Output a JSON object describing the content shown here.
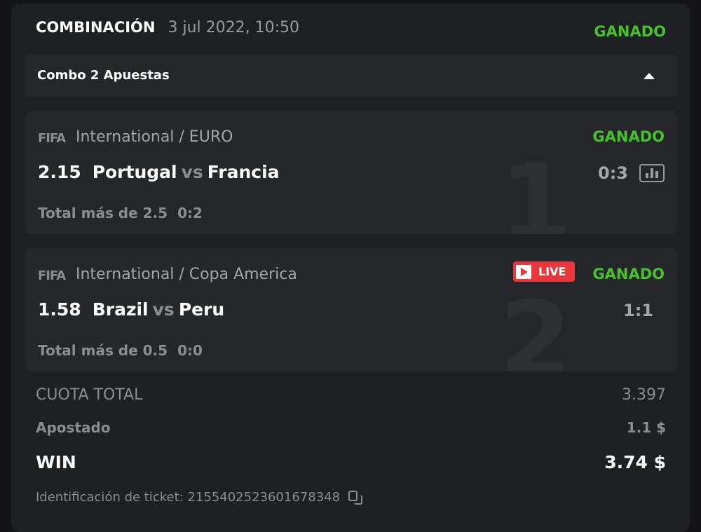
{
  "header": {
    "type": "COMBINACIÓN",
    "date": "3 jul 2022, 10:50",
    "status": "GANADO"
  },
  "combo": {
    "label": "Combo 2 Apuestas",
    "icon": "caret-up-icon"
  },
  "bets": [
    {
      "index": "1",
      "logo": "FIFA",
      "league": "International / EURO",
      "status": "GANADO",
      "odd": "2.15",
      "home": "Portugal",
      "vs": "vs",
      "away": "Francia",
      "score": "0:3",
      "market": "Total más de 2.5",
      "market_score": "0:2",
      "live": false
    },
    {
      "index": "2",
      "logo": "FIFA",
      "league": "International / Copa America",
      "status": "GANADO",
      "odd": "1.58",
      "home": "Brazil",
      "vs": "vs",
      "away": "Peru",
      "score": "1:1",
      "market": "Total más de 0.5",
      "market_score": "0:0",
      "live": true,
      "live_label": "LIVE"
    }
  ],
  "summary": {
    "total_odds_label": "CUOTA TOTAL",
    "total_odds": "3.397",
    "staked_label": "Apostado",
    "staked": "1.1 $",
    "win_label": "WIN",
    "win": "3.74 $"
  },
  "ticket": {
    "label": "Identificación de ticket: 2155402523601678348"
  },
  "colors": {
    "won": "#46c22a",
    "live": "#e8383d"
  }
}
